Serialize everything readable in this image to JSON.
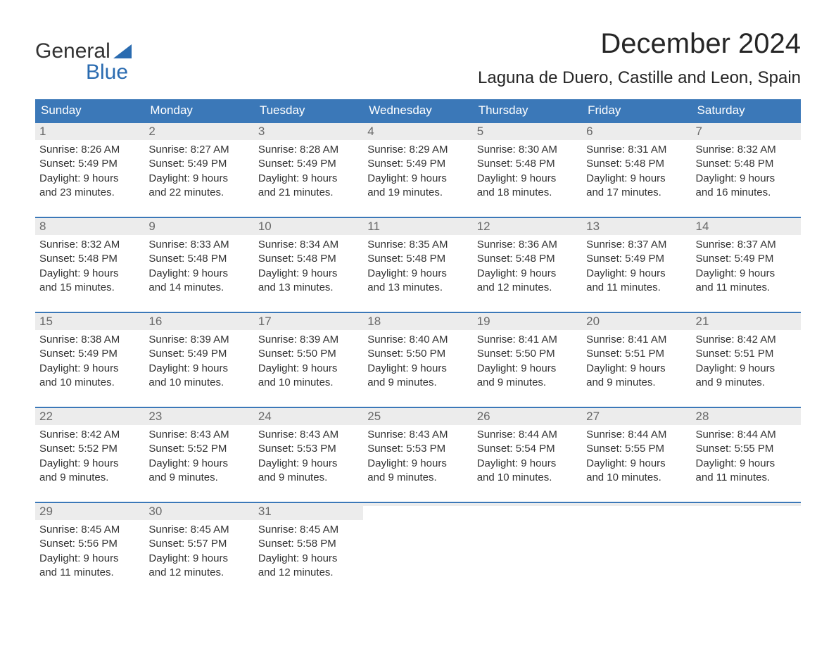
{
  "brand": {
    "part1": "General",
    "part2": "Blue"
  },
  "title": {
    "month": "December 2024",
    "location": "Laguna de Duero, Castille and Leon, Spain"
  },
  "colors": {
    "header_bg": "#3b78b8",
    "header_text": "#ffffff",
    "daynum_bg": "#ececec",
    "daynum_text": "#6a6a6a",
    "body_text": "#333333",
    "brand_blue": "#2a6bb0",
    "week_border": "#3b78b8",
    "page_bg": "#ffffff"
  },
  "typography": {
    "month_title_fontsize": 40,
    "location_fontsize": 24,
    "day_header_fontsize": 17,
    "daynum_fontsize": 17,
    "cell_body_fontsize": 15,
    "logo_fontsize": 30
  },
  "day_names": [
    "Sunday",
    "Monday",
    "Tuesday",
    "Wednesday",
    "Thursday",
    "Friday",
    "Saturday"
  ],
  "weeks": [
    [
      {
        "n": "1",
        "sunrise": "Sunrise: 8:26 AM",
        "sunset": "Sunset: 5:49 PM",
        "day1": "Daylight: 9 hours",
        "day2": "and 23 minutes."
      },
      {
        "n": "2",
        "sunrise": "Sunrise: 8:27 AM",
        "sunset": "Sunset: 5:49 PM",
        "day1": "Daylight: 9 hours",
        "day2": "and 22 minutes."
      },
      {
        "n": "3",
        "sunrise": "Sunrise: 8:28 AM",
        "sunset": "Sunset: 5:49 PM",
        "day1": "Daylight: 9 hours",
        "day2": "and 21 minutes."
      },
      {
        "n": "4",
        "sunrise": "Sunrise: 8:29 AM",
        "sunset": "Sunset: 5:49 PM",
        "day1": "Daylight: 9 hours",
        "day2": "and 19 minutes."
      },
      {
        "n": "5",
        "sunrise": "Sunrise: 8:30 AM",
        "sunset": "Sunset: 5:48 PM",
        "day1": "Daylight: 9 hours",
        "day2": "and 18 minutes."
      },
      {
        "n": "6",
        "sunrise": "Sunrise: 8:31 AM",
        "sunset": "Sunset: 5:48 PM",
        "day1": "Daylight: 9 hours",
        "day2": "and 17 minutes."
      },
      {
        "n": "7",
        "sunrise": "Sunrise: 8:32 AM",
        "sunset": "Sunset: 5:48 PM",
        "day1": "Daylight: 9 hours",
        "day2": "and 16 minutes."
      }
    ],
    [
      {
        "n": "8",
        "sunrise": "Sunrise: 8:32 AM",
        "sunset": "Sunset: 5:48 PM",
        "day1": "Daylight: 9 hours",
        "day2": "and 15 minutes."
      },
      {
        "n": "9",
        "sunrise": "Sunrise: 8:33 AM",
        "sunset": "Sunset: 5:48 PM",
        "day1": "Daylight: 9 hours",
        "day2": "and 14 minutes."
      },
      {
        "n": "10",
        "sunrise": "Sunrise: 8:34 AM",
        "sunset": "Sunset: 5:48 PM",
        "day1": "Daylight: 9 hours",
        "day2": "and 13 minutes."
      },
      {
        "n": "11",
        "sunrise": "Sunrise: 8:35 AM",
        "sunset": "Sunset: 5:48 PM",
        "day1": "Daylight: 9 hours",
        "day2": "and 13 minutes."
      },
      {
        "n": "12",
        "sunrise": "Sunrise: 8:36 AM",
        "sunset": "Sunset: 5:48 PM",
        "day1": "Daylight: 9 hours",
        "day2": "and 12 minutes."
      },
      {
        "n": "13",
        "sunrise": "Sunrise: 8:37 AM",
        "sunset": "Sunset: 5:49 PM",
        "day1": "Daylight: 9 hours",
        "day2": "and 11 minutes."
      },
      {
        "n": "14",
        "sunrise": "Sunrise: 8:37 AM",
        "sunset": "Sunset: 5:49 PM",
        "day1": "Daylight: 9 hours",
        "day2": "and 11 minutes."
      }
    ],
    [
      {
        "n": "15",
        "sunrise": "Sunrise: 8:38 AM",
        "sunset": "Sunset: 5:49 PM",
        "day1": "Daylight: 9 hours",
        "day2": "and 10 minutes."
      },
      {
        "n": "16",
        "sunrise": "Sunrise: 8:39 AM",
        "sunset": "Sunset: 5:49 PM",
        "day1": "Daylight: 9 hours",
        "day2": "and 10 minutes."
      },
      {
        "n": "17",
        "sunrise": "Sunrise: 8:39 AM",
        "sunset": "Sunset: 5:50 PM",
        "day1": "Daylight: 9 hours",
        "day2": "and 10 minutes."
      },
      {
        "n": "18",
        "sunrise": "Sunrise: 8:40 AM",
        "sunset": "Sunset: 5:50 PM",
        "day1": "Daylight: 9 hours",
        "day2": "and 9 minutes."
      },
      {
        "n": "19",
        "sunrise": "Sunrise: 8:41 AM",
        "sunset": "Sunset: 5:50 PM",
        "day1": "Daylight: 9 hours",
        "day2": "and 9 minutes."
      },
      {
        "n": "20",
        "sunrise": "Sunrise: 8:41 AM",
        "sunset": "Sunset: 5:51 PM",
        "day1": "Daylight: 9 hours",
        "day2": "and 9 minutes."
      },
      {
        "n": "21",
        "sunrise": "Sunrise: 8:42 AM",
        "sunset": "Sunset: 5:51 PM",
        "day1": "Daylight: 9 hours",
        "day2": "and 9 minutes."
      }
    ],
    [
      {
        "n": "22",
        "sunrise": "Sunrise: 8:42 AM",
        "sunset": "Sunset: 5:52 PM",
        "day1": "Daylight: 9 hours",
        "day2": "and 9 minutes."
      },
      {
        "n": "23",
        "sunrise": "Sunrise: 8:43 AM",
        "sunset": "Sunset: 5:52 PM",
        "day1": "Daylight: 9 hours",
        "day2": "and 9 minutes."
      },
      {
        "n": "24",
        "sunrise": "Sunrise: 8:43 AM",
        "sunset": "Sunset: 5:53 PM",
        "day1": "Daylight: 9 hours",
        "day2": "and 9 minutes."
      },
      {
        "n": "25",
        "sunrise": "Sunrise: 8:43 AM",
        "sunset": "Sunset: 5:53 PM",
        "day1": "Daylight: 9 hours",
        "day2": "and 9 minutes."
      },
      {
        "n": "26",
        "sunrise": "Sunrise: 8:44 AM",
        "sunset": "Sunset: 5:54 PM",
        "day1": "Daylight: 9 hours",
        "day2": "and 10 minutes."
      },
      {
        "n": "27",
        "sunrise": "Sunrise: 8:44 AM",
        "sunset": "Sunset: 5:55 PM",
        "day1": "Daylight: 9 hours",
        "day2": "and 10 minutes."
      },
      {
        "n": "28",
        "sunrise": "Sunrise: 8:44 AM",
        "sunset": "Sunset: 5:55 PM",
        "day1": "Daylight: 9 hours",
        "day2": "and 11 minutes."
      }
    ],
    [
      {
        "n": "29",
        "sunrise": "Sunrise: 8:45 AM",
        "sunset": "Sunset: 5:56 PM",
        "day1": "Daylight: 9 hours",
        "day2": "and 11 minutes."
      },
      {
        "n": "30",
        "sunrise": "Sunrise: 8:45 AM",
        "sunset": "Sunset: 5:57 PM",
        "day1": "Daylight: 9 hours",
        "day2": "and 12 minutes."
      },
      {
        "n": "31",
        "sunrise": "Sunrise: 8:45 AM",
        "sunset": "Sunset: 5:58 PM",
        "day1": "Daylight: 9 hours",
        "day2": "and 12 minutes."
      },
      {
        "n": "",
        "sunrise": "",
        "sunset": "",
        "day1": "",
        "day2": ""
      },
      {
        "n": "",
        "sunrise": "",
        "sunset": "",
        "day1": "",
        "day2": ""
      },
      {
        "n": "",
        "sunrise": "",
        "sunset": "",
        "day1": "",
        "day2": ""
      },
      {
        "n": "",
        "sunrise": "",
        "sunset": "",
        "day1": "",
        "day2": ""
      }
    ]
  ]
}
